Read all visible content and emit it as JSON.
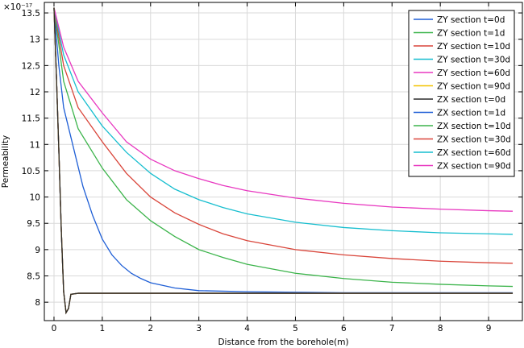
{
  "chart_data": {
    "type": "line",
    "title": "",
    "xlabel": "Distance from the borehole(m)",
    "ylabel": "Permeability",
    "exponent_label": "×10⁻¹⁷",
    "xlim": [
      -0.2,
      9.7
    ],
    "ylim": [
      7.65,
      13.7
    ],
    "x_ticks": [
      0,
      1,
      2,
      3,
      4,
      5,
      6,
      7,
      8,
      9
    ],
    "x_tick_labels": [
      "0",
      "1",
      "2",
      "3",
      "4",
      "5",
      "6",
      "7",
      "8",
      "9"
    ],
    "y_ticks": [
      8,
      8.5,
      9,
      9.5,
      10,
      10.5,
      11,
      11.5,
      12,
      12.5,
      13,
      13.5
    ],
    "y_tick_labels": [
      "8",
      "8.5",
      "9",
      "9.5",
      "10",
      "10.5",
      "11",
      "11.5",
      "12",
      "12.5",
      "13",
      "13.5"
    ],
    "grid": true,
    "legend_position": "top-right",
    "series": [
      {
        "name": "ZY section t=0d",
        "color": "#1f5fd6",
        "points": [
          [
            0,
            13.6
          ],
          [
            0.05,
            12.3
          ],
          [
            0.1,
            10.9
          ],
          [
            0.15,
            9.4
          ],
          [
            0.2,
            8.2
          ],
          [
            0.25,
            7.8
          ],
          [
            0.3,
            7.88
          ],
          [
            0.35,
            8.15
          ],
          [
            0.5,
            8.17
          ],
          [
            1,
            8.17
          ],
          [
            2,
            8.17
          ],
          [
            3,
            8.17
          ],
          [
            4,
            8.17
          ],
          [
            5,
            8.17
          ],
          [
            6,
            8.17
          ],
          [
            7,
            8.17
          ],
          [
            8,
            8.17
          ],
          [
            9,
            8.17
          ],
          [
            9.5,
            8.17
          ]
        ]
      },
      {
        "name": "ZY section t=1d",
        "color": "#3cb44b",
        "points": [
          [
            0,
            13.6
          ],
          [
            0.05,
            12.3
          ],
          [
            0.1,
            10.9
          ],
          [
            0.15,
            9.4
          ],
          [
            0.2,
            8.2
          ],
          [
            0.25,
            7.8
          ],
          [
            0.3,
            7.88
          ],
          [
            0.35,
            8.15
          ],
          [
            0.5,
            8.17
          ],
          [
            1,
            8.17
          ],
          [
            2,
            8.17
          ],
          [
            3,
            8.17
          ],
          [
            4,
            8.17
          ],
          [
            5,
            8.17
          ],
          [
            6,
            8.17
          ],
          [
            7,
            8.17
          ],
          [
            8,
            8.17
          ],
          [
            9,
            8.17
          ],
          [
            9.5,
            8.17
          ]
        ]
      },
      {
        "name": "ZY section t=10d",
        "color": "#d9453a",
        "points": [
          [
            0,
            13.6
          ],
          [
            0.05,
            12.3
          ],
          [
            0.1,
            10.9
          ],
          [
            0.15,
            9.4
          ],
          [
            0.2,
            8.2
          ],
          [
            0.25,
            7.8
          ],
          [
            0.3,
            7.88
          ],
          [
            0.35,
            8.15
          ],
          [
            0.5,
            8.17
          ],
          [
            1,
            8.17
          ],
          [
            2,
            8.17
          ],
          [
            3,
            8.17
          ],
          [
            4,
            8.17
          ],
          [
            5,
            8.17
          ],
          [
            6,
            8.17
          ],
          [
            7,
            8.17
          ],
          [
            8,
            8.17
          ],
          [
            9,
            8.17
          ],
          [
            9.5,
            8.17
          ]
        ]
      },
      {
        "name": "ZY section t=30d",
        "color": "#17becf",
        "points": [
          [
            0,
            13.6
          ],
          [
            0.05,
            12.3
          ],
          [
            0.1,
            10.9
          ],
          [
            0.15,
            9.4
          ],
          [
            0.2,
            8.2
          ],
          [
            0.25,
            7.8
          ],
          [
            0.3,
            7.88
          ],
          [
            0.35,
            8.15
          ],
          [
            0.5,
            8.17
          ],
          [
            1,
            8.17
          ],
          [
            2,
            8.17
          ],
          [
            3,
            8.17
          ],
          [
            4,
            8.17
          ],
          [
            5,
            8.17
          ],
          [
            6,
            8.17
          ],
          [
            7,
            8.17
          ],
          [
            8,
            8.17
          ],
          [
            9,
            8.17
          ],
          [
            9.5,
            8.17
          ]
        ]
      },
      {
        "name": "ZY section t=60d",
        "color": "#e838c0",
        "points": [
          [
            0,
            13.6
          ],
          [
            0.05,
            12.3
          ],
          [
            0.1,
            10.9
          ],
          [
            0.15,
            9.4
          ],
          [
            0.2,
            8.2
          ],
          [
            0.25,
            7.8
          ],
          [
            0.3,
            7.88
          ],
          [
            0.35,
            8.15
          ],
          [
            0.5,
            8.17
          ],
          [
            1,
            8.17
          ],
          [
            2,
            8.17
          ],
          [
            3,
            8.17
          ],
          [
            4,
            8.17
          ],
          [
            5,
            8.17
          ],
          [
            6,
            8.17
          ],
          [
            7,
            8.17
          ],
          [
            8,
            8.17
          ],
          [
            9,
            8.17
          ],
          [
            9.5,
            8.17
          ]
        ]
      },
      {
        "name": "ZY section t=90d",
        "color": "#f2c300",
        "points": [
          [
            0,
            13.6
          ],
          [
            0.05,
            12.3
          ],
          [
            0.1,
            10.9
          ],
          [
            0.15,
            9.4
          ],
          [
            0.2,
            8.2
          ],
          [
            0.25,
            7.8
          ],
          [
            0.3,
            7.88
          ],
          [
            0.35,
            8.15
          ],
          [
            0.5,
            8.17
          ],
          [
            1,
            8.17
          ],
          [
            2,
            8.17
          ],
          [
            3,
            8.17
          ],
          [
            4,
            8.17
          ],
          [
            5,
            8.17
          ],
          [
            6,
            8.17
          ],
          [
            7,
            8.17
          ],
          [
            8,
            8.17
          ],
          [
            9,
            8.17
          ],
          [
            9.5,
            8.17
          ]
        ]
      },
      {
        "name": "ZX section t=0d",
        "color": "#2b2b2b",
        "points": [
          [
            0,
            13.6
          ],
          [
            0.05,
            12.3
          ],
          [
            0.1,
            10.9
          ],
          [
            0.15,
            9.4
          ],
          [
            0.2,
            8.2
          ],
          [
            0.25,
            7.8
          ],
          [
            0.3,
            7.88
          ],
          [
            0.35,
            8.15
          ],
          [
            0.5,
            8.17
          ],
          [
            1,
            8.17
          ],
          [
            2,
            8.17
          ],
          [
            3,
            8.17
          ],
          [
            4,
            8.17
          ],
          [
            5,
            8.17
          ],
          [
            6,
            8.17
          ],
          [
            7,
            8.17
          ],
          [
            8,
            8.17
          ],
          [
            9,
            8.17
          ],
          [
            9.5,
            8.17
          ]
        ]
      },
      {
        "name": "ZX section t=1d",
        "color": "#1f5fd6",
        "points": [
          [
            0,
            13.6
          ],
          [
            0.1,
            12.5
          ],
          [
            0.2,
            11.7
          ],
          [
            0.4,
            10.95
          ],
          [
            0.6,
            10.2
          ],
          [
            0.8,
            9.65
          ],
          [
            1,
            9.2
          ],
          [
            1.2,
            8.9
          ],
          [
            1.4,
            8.7
          ],
          [
            1.6,
            8.55
          ],
          [
            1.8,
            8.45
          ],
          [
            2,
            8.37
          ],
          [
            2.5,
            8.27
          ],
          [
            3,
            8.22
          ],
          [
            4,
            8.2
          ],
          [
            5,
            8.19
          ],
          [
            6,
            8.18
          ],
          [
            7,
            8.18
          ],
          [
            8,
            8.18
          ],
          [
            9,
            8.18
          ],
          [
            9.5,
            8.18
          ]
        ]
      },
      {
        "name": "ZX section t=10d",
        "color": "#3cb44b",
        "points": [
          [
            0,
            13.6
          ],
          [
            0.2,
            12.2
          ],
          [
            0.5,
            11.3
          ],
          [
            1,
            10.55
          ],
          [
            1.5,
            9.95
          ],
          [
            2,
            9.55
          ],
          [
            2.5,
            9.25
          ],
          [
            3,
            9.0
          ],
          [
            3.5,
            8.85
          ],
          [
            4,
            8.72
          ],
          [
            5,
            8.55
          ],
          [
            6,
            8.45
          ],
          [
            7,
            8.38
          ],
          [
            8,
            8.34
          ],
          [
            9,
            8.31
          ],
          [
            9.5,
            8.3
          ]
        ]
      },
      {
        "name": "ZX section t=30d",
        "color": "#d9453a",
        "points": [
          [
            0,
            13.6
          ],
          [
            0.2,
            12.5
          ],
          [
            0.5,
            11.7
          ],
          [
            1,
            11.05
          ],
          [
            1.5,
            10.45
          ],
          [
            2,
            10.0
          ],
          [
            2.5,
            9.7
          ],
          [
            3,
            9.48
          ],
          [
            3.5,
            9.3
          ],
          [
            4,
            9.17
          ],
          [
            5,
            9.0
          ],
          [
            6,
            8.9
          ],
          [
            7,
            8.83
          ],
          [
            8,
            8.78
          ],
          [
            9,
            8.75
          ],
          [
            9.5,
            8.74
          ]
        ]
      },
      {
        "name": "ZX section t=60d",
        "color": "#17becf",
        "points": [
          [
            0,
            13.6
          ],
          [
            0.2,
            12.7
          ],
          [
            0.5,
            12.0
          ],
          [
            1,
            11.35
          ],
          [
            1.5,
            10.85
          ],
          [
            2,
            10.45
          ],
          [
            2.5,
            10.15
          ],
          [
            3,
            9.95
          ],
          [
            3.5,
            9.8
          ],
          [
            4,
            9.68
          ],
          [
            5,
            9.52
          ],
          [
            6,
            9.42
          ],
          [
            7,
            9.36
          ],
          [
            8,
            9.32
          ],
          [
            9,
            9.3
          ],
          [
            9.5,
            9.29
          ]
        ]
      },
      {
        "name": "ZX section t=90d",
        "color": "#e838c0",
        "points": [
          [
            0,
            13.6
          ],
          [
            0.2,
            12.85
          ],
          [
            0.5,
            12.2
          ],
          [
            1,
            11.6
          ],
          [
            1.5,
            11.05
          ],
          [
            2,
            10.72
          ],
          [
            2.5,
            10.5
          ],
          [
            3,
            10.35
          ],
          [
            3.5,
            10.22
          ],
          [
            4,
            10.12
          ],
          [
            5,
            9.98
          ],
          [
            6,
            9.88
          ],
          [
            7,
            9.81
          ],
          [
            8,
            9.77
          ],
          [
            9,
            9.74
          ],
          [
            9.5,
            9.73
          ]
        ]
      }
    ]
  }
}
